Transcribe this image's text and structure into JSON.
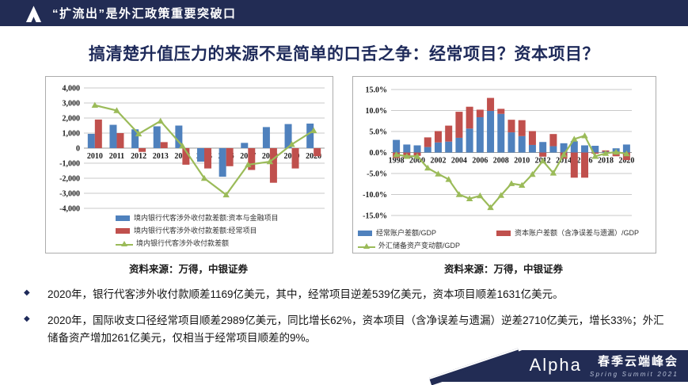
{
  "header": {
    "title": "“扩流出”是外汇政策重要突破口"
  },
  "page_title": "搞清楚升值压力的来源不是简单的口舌之争：经常项目？资本项目？",
  "source_note": "资料来源：万得，中银证券",
  "bullet_glyph": "◆",
  "colors": {
    "navy": "#222C54",
    "bar_blue": "#4F81BD",
    "bar_red": "#C0504D",
    "line_green": "#9BBB59"
  },
  "chart_data": [
    {
      "type": "bar",
      "subtype": "grouped-bars-with-line",
      "title": "",
      "categories": [
        2010,
        2011,
        2012,
        2013,
        2014,
        2015,
        2016,
        2017,
        2018,
        2019,
        2020
      ],
      "series": [
        {
          "name": "境内银行代客涉外收付款差额:资本与金融项目",
          "type": "bar",
          "color": "#4F81BD",
          "values": [
            950,
            1550,
            1250,
            1450,
            1500,
            -900,
            -1900,
            350,
            1400,
            1600,
            1631
          ]
        },
        {
          "name": "境内银行代客涉外收付款差额:经常项目",
          "type": "bar",
          "color": "#C0504D",
          "values": [
            1900,
            1000,
            -250,
            400,
            -1100,
            -1350,
            -1200,
            -1450,
            -2300,
            -1350,
            -539
          ]
        },
        {
          "name": "境内银行代客涉外收付款差额",
          "type": "line",
          "color": "#9BBB59",
          "values": [
            2850,
            2500,
            950,
            1800,
            150,
            -2000,
            -3100,
            -1100,
            -900,
            250,
            1169
          ]
        }
      ],
      "ylim": [
        -4000,
        4000
      ],
      "ytick_step": 1000,
      "xtick_every": 1,
      "grid": true,
      "legend_position": "bottom-left"
    },
    {
      "type": "bar",
      "subtype": "stacked-bars-with-line",
      "title": "",
      "categories": [
        1998,
        1999,
        2000,
        2001,
        2002,
        2003,
        2004,
        2005,
        2006,
        2007,
        2008,
        2009,
        2010,
        2011,
        2012,
        2013,
        2014,
        2015,
        2016,
        2017,
        2018,
        2019,
        2020
      ],
      "series": [
        {
          "name": "经常账户差额/GDP",
          "type": "bar",
          "color": "#4F81BD",
          "values": [
            3.0,
            1.9,
            1.7,
            1.3,
            2.4,
            2.6,
            3.5,
            5.7,
            8.4,
            9.9,
            9.2,
            4.8,
            3.9,
            1.8,
            2.5,
            1.5,
            2.2,
            2.7,
            1.7,
            1.6,
            0.2,
            1.0,
            1.9
          ]
        },
        {
          "name": "资本账户差额（含净误差与遗漏）/GDP",
          "type": "bar",
          "color": "#C0504D",
          "values": [
            -1.3,
            -1.2,
            -0.8,
            2.3,
            2.7,
            3.8,
            6.2,
            5.2,
            1.8,
            3.1,
            1.2,
            3.0,
            3.8,
            3.3,
            -1.0,
            2.9,
            -1.5,
            -6.0,
            -6.0,
            -0.3,
            0.3,
            -0.9,
            -1.8
          ]
        },
        {
          "name": "外汇储备资产变动额/GDP",
          "type": "line",
          "color": "#9BBB59",
          "values": [
            -0.5,
            -0.9,
            -0.9,
            -3.7,
            -5.1,
            -6.4,
            -10.0,
            -11.0,
            -10.3,
            -13.1,
            -10.2,
            -7.4,
            -7.8,
            -5.2,
            -2.0,
            -4.9,
            -0.5,
            3.2,
            4.0,
            -0.9,
            -0.2,
            0.1,
            -0.3
          ]
        }
      ],
      "ylim": [
        -15,
        15
      ],
      "ytick_step": 5,
      "ytick_suffix": "%",
      "xtick_every": 2,
      "grid": true,
      "legend_position": "bottom"
    }
  ],
  "bullets": [
    "2020年，银行代客涉外收付款顺差1169亿美元，其中，经常项目逆差539亿美元，资本项目顺差1631亿美元。",
    "2020年，国际收支口径经常项目顺差2989亿美元，同比增长62%，资本项目（含净误差与遗漏）逆差2710亿美元，增长33%；外汇储备资产增加261亿美元，仅相当于经常项目顺差的9%。"
  ],
  "footer": {
    "brand": "Alpha",
    "event": "春季云端峰会",
    "subtitle": "Spring Summit 2021"
  }
}
